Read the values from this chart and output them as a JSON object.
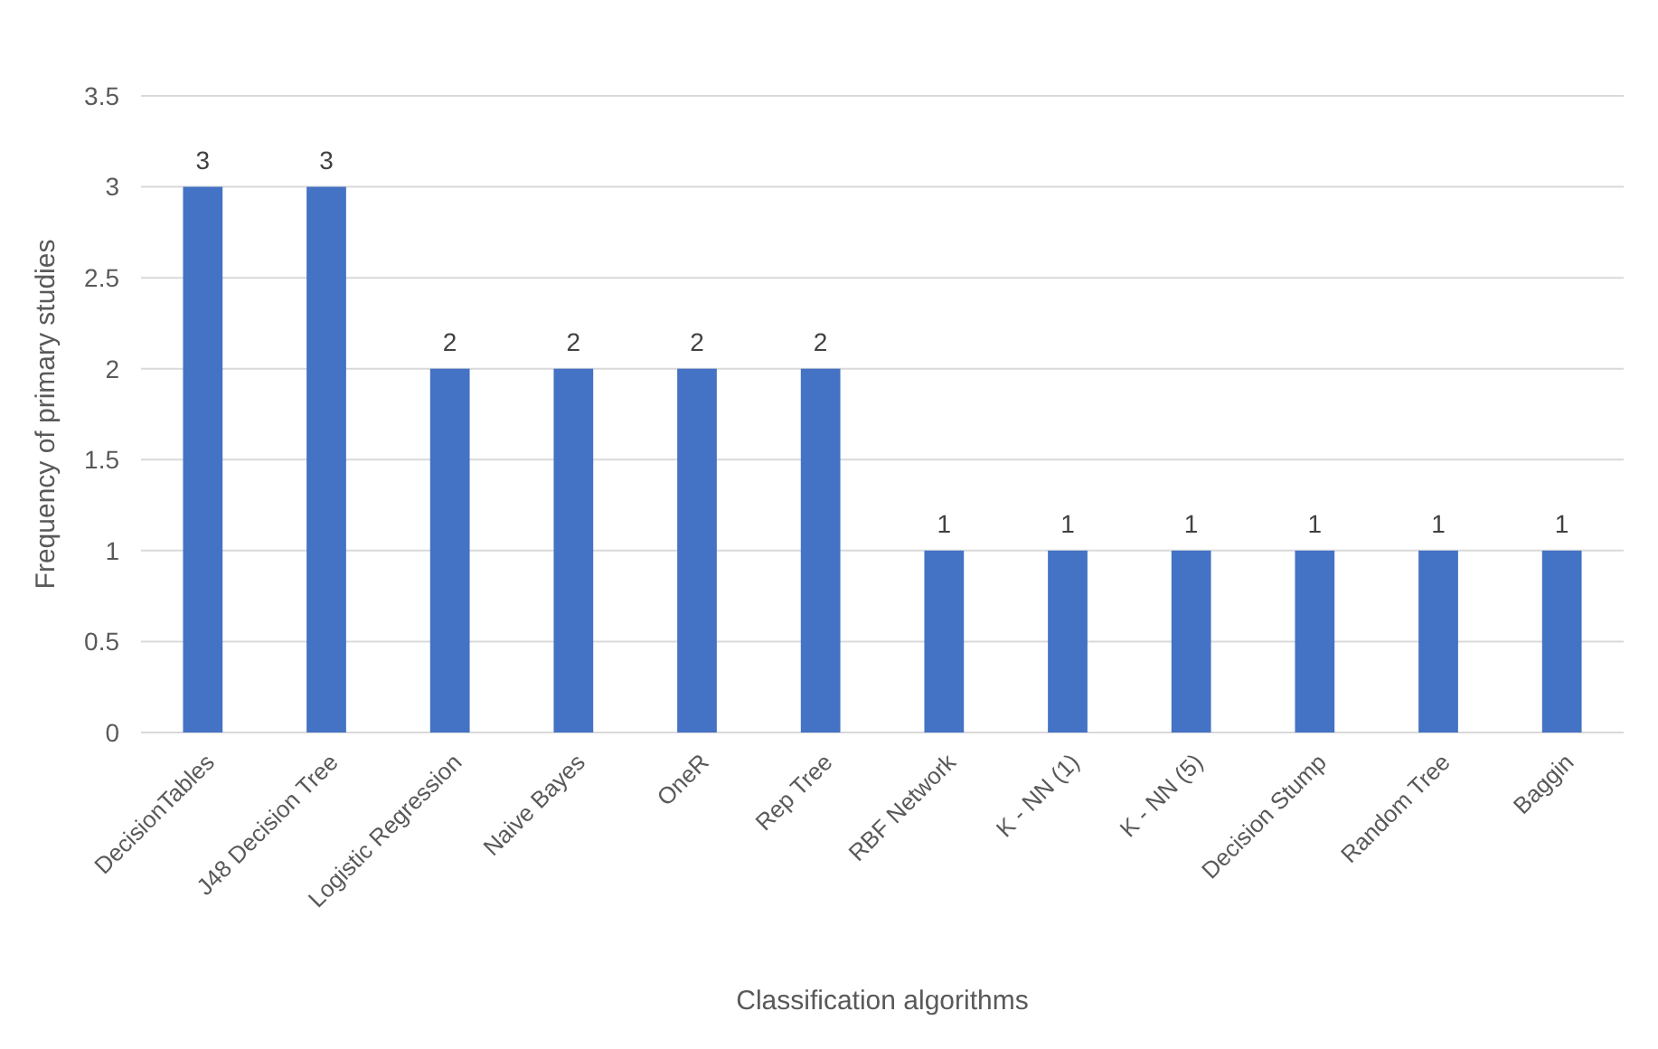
{
  "chart_data": {
    "type": "bar",
    "xlabel": "Classification algorithms",
    "ylabel": "Frequency of primary studies",
    "categories": [
      "DecisionTables",
      "J48 Decision Tree",
      "Logistic Regression",
      "Naive Bayes",
      "OneR",
      "Rep Tree",
      "RBF Network",
      "K - NN (1)",
      "K - NN (5)",
      "Decision Stump",
      "Random Tree",
      "Baggin"
    ],
    "values": [
      3,
      3,
      2,
      2,
      2,
      2,
      1,
      1,
      1,
      1,
      1,
      1
    ],
    "color": "#4472c4",
    "ylim": [
      0,
      3.5
    ],
    "yticks": [
      0,
      0.5,
      1,
      1.5,
      2,
      2.5,
      3,
      3.5
    ],
    "grid": "y",
    "data_labels": true
  }
}
